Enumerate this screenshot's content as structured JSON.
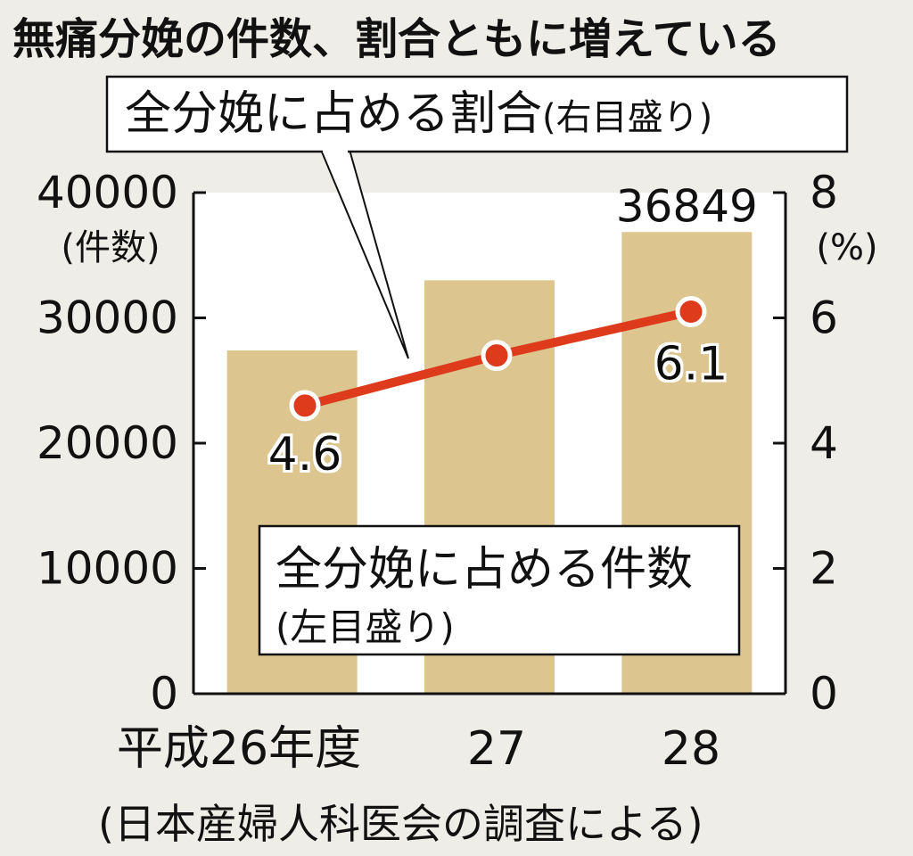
{
  "colors": {
    "background": "#eeede7",
    "plot_background": "#ffffff",
    "bar": "#dcc58f",
    "line": "#dd3b1c",
    "text": "#111111"
  },
  "chart_data": {
    "type": "bar",
    "title": "無痛分娩の件数、割合ともに増えている",
    "categories": [
      "平成26年度",
      "27",
      "28"
    ],
    "series": [
      {
        "name": "全分娩に占める件数",
        "axis_note": "(左目盛り)",
        "type": "bar",
        "axis": "left",
        "values": [
          27400,
          33000,
          36849
        ],
        "data_labels": [
          "",
          "",
          "36849"
        ]
      },
      {
        "name": "全分娩に占める割合",
        "axis_note": "(右目盛り)",
        "type": "line",
        "axis": "right",
        "values": [
          4.6,
          5.4,
          6.1
        ],
        "data_labels": [
          "4.6",
          "",
          "6.1"
        ]
      }
    ],
    "y_left": {
      "unit": "(件数)",
      "ylim": [
        0,
        40000
      ],
      "ticks": [
        0,
        10000,
        20000,
        30000,
        40000
      ]
    },
    "y_right": {
      "unit": "(%)",
      "ylim": [
        0,
        8
      ],
      "ticks": [
        0,
        2,
        4,
        6,
        8
      ]
    },
    "grid": false,
    "source": "(日本産婦人科医会の調査による)"
  }
}
